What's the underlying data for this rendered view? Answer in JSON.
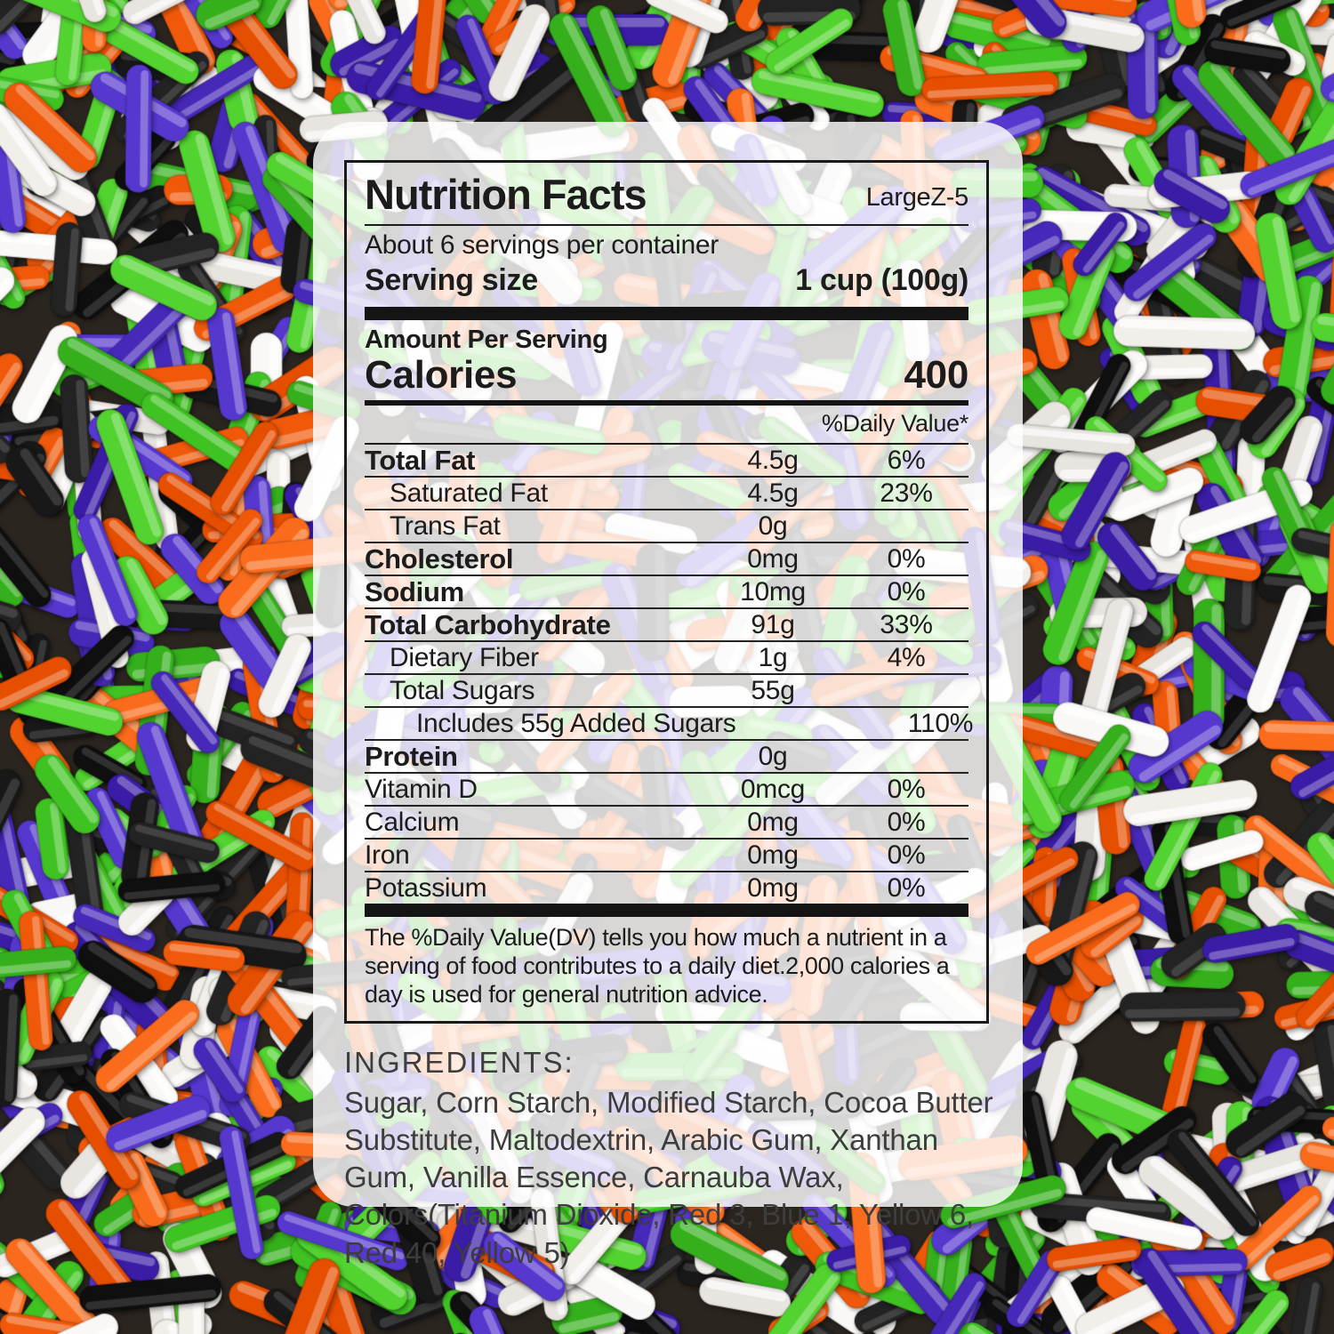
{
  "background": {
    "description": "halloween sprinkles photo",
    "base_color": "#2b2520",
    "sprinkle_colors": {
      "green": [
        "#3fc322",
        "#35b01c",
        "#52d32f"
      ],
      "orange": [
        "#f0590a",
        "#e64e00",
        "#fa6c1c"
      ],
      "purple": [
        "#4629b8",
        "#3a1ca6",
        "#5638cf"
      ],
      "black": [
        "#181818",
        "#0f0f0f",
        "#232323"
      ],
      "white": [
        "#f2efeb",
        "#e8e4e0",
        "#faf8f6"
      ]
    }
  },
  "nutrition": {
    "title": "Nutrition Facts",
    "code": "LargeZ-5",
    "servings_per_container": "About 6 servings per container",
    "serving_size_label": "Serving size",
    "serving_size_value": "1 cup (100g)",
    "amount_per_serving": "Amount Per Serving",
    "calories_label": "Calories",
    "calories_value": "400",
    "daily_value_header": "%Daily Value*",
    "rows": [
      {
        "name": "Total Fat",
        "amount": "4.5g",
        "dv": "6%"
      },
      {
        "name": "Saturated  Fat",
        "amount": "4.5g",
        "dv": "23%"
      },
      {
        "name": "Trans Fat",
        "amount": "0g",
        "dv": ""
      },
      {
        "name": "Cholesterol",
        "amount": "0mg",
        "dv": "0%"
      },
      {
        "name": "Sodium",
        "amount": "10mg",
        "dv": "0%"
      },
      {
        "name": "Total Carbohydrate",
        "amount": "91g",
        "dv": "33%"
      },
      {
        "name": "Dietary Fiber",
        "amount": "1g",
        "dv": "4%"
      },
      {
        "name": "Total Sugars",
        "amount": "55g",
        "dv": ""
      },
      {
        "name": "Includes 55g Added Sugars",
        "amount": "",
        "dv": "110%"
      },
      {
        "name": "Protein",
        "amount": "0g",
        "dv": ""
      },
      {
        "name": "Vitamin D",
        "amount": "0mcg",
        "dv": "0%"
      },
      {
        "name": "Calcium",
        "amount": "0mg",
        "dv": "0%"
      },
      {
        "name": "Iron",
        "amount": "0mg",
        "dv": "0%"
      },
      {
        "name": "Potassium",
        "amount": "0mg",
        "dv": "0%"
      }
    ],
    "footnote": "The %Daily Value(DV) tells you how much a nutrient in a serving of food contributes to a daily diet.2,000 calories a day is used for general nutrition advice."
  },
  "ingredients": {
    "heading": "INGREDIENTS:",
    "text": "Sugar, Corn Starch, Modified Starch, Cocoa Butter Substitute, Maltodextrin, Arabic Gum, Xanthan Gum, Vanilla Essence, Carnauba Wax, Colors(Titanium Dioxide, Red 3, Blue 1, Yellow 6, Red 40, Yellow 5)"
  }
}
